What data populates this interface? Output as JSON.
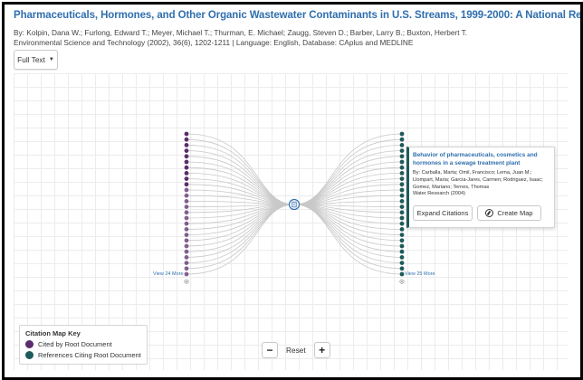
{
  "paper": {
    "title": "Pharmaceuticals, Hormones, and Other Organic Wastewater Contaminants in U.S. Streams, 1999-2000: A National Reconnaissance",
    "authors": "By: Kolpin, Dana W.; Furlong, Edward T.; Meyer, Michael T.; Thurman, E. Michael; Zaugg, Steven D.; Barber, Larry B.; Buxton, Herbert T.",
    "source": "Environmental Science and Technology (2002), 36(6), 1202-1211 | Language: English, Database: CAplus and MEDLINE"
  },
  "toolbar": {
    "full_text_label": "Full Text"
  },
  "map": {
    "left_more": "View 24 More",
    "right_more": "View 25 More",
    "left_node_count": 26,
    "right_node_count": 26,
    "colors": {
      "cited": "#5b2d6e",
      "citing": "#1e5a5a",
      "edge": "#c8c8c8",
      "center_fill": "#ffffff",
      "center_stroke": "#2f6fae"
    }
  },
  "popup": {
    "title": "Behavior of pharmaceuticals, cosmetics and hormones in a sewage treatment plant",
    "authors": "By: Carballa, Marta; Omil, Francisco; Lema, Juan M.; Llompart, Maria; Garcia-Jares, Carmen; Rodriguez, Isaac; Gomez, Mariano; Ternes, Thomas",
    "journal": "Water Research (2004)",
    "expand_label": "Expand Citations",
    "create_map_label": "Create Map"
  },
  "legend": {
    "title": "Citation Map Key",
    "items": [
      {
        "label": "Cited by Root Document",
        "color": "#5b2d6e"
      },
      {
        "label": "References Citing Root Document",
        "color": "#1e5a5a"
      }
    ]
  },
  "zoom": {
    "minus": "−",
    "reset": "Reset",
    "plus": "+"
  }
}
